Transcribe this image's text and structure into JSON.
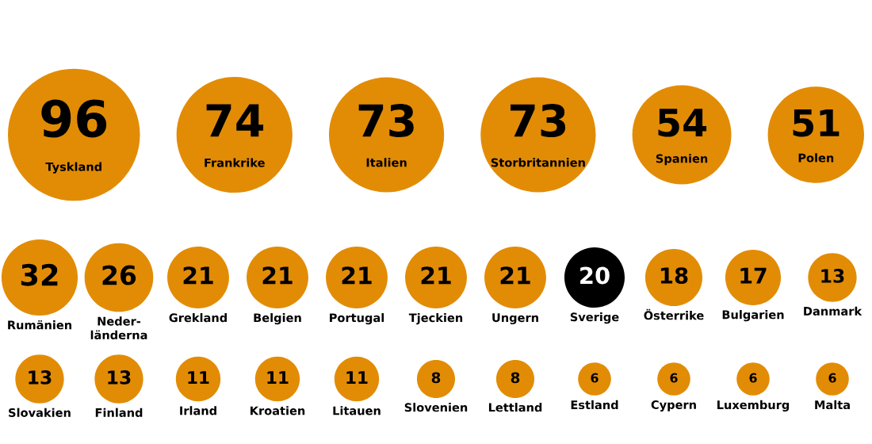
{
  "chart_data": {
    "type": "other",
    "data_labels": true,
    "categories": [
      "Tyskland",
      "Frankrike",
      "Italien",
      "Storbritannien",
      "Spanien",
      "Polen",
      "Rumänien",
      "Neder-\nländerna",
      "Grekland",
      "Belgien",
      "Portugal",
      "Tjeckien",
      "Ungern",
      "Sverige",
      "Österrike",
      "Bulgarien",
      "Danmark",
      "Slovakien",
      "Finland",
      "Irland",
      "Kroatien",
      "Litauen",
      "Slovenien",
      "Lettland",
      "Estland",
      "Cypern",
      "Luxemburg",
      "Malta"
    ],
    "values": [
      96,
      74,
      73,
      73,
      54,
      51,
      32,
      26,
      21,
      21,
      21,
      21,
      21,
      20,
      18,
      17,
      13,
      13,
      13,
      11,
      11,
      11,
      8,
      8,
      6,
      6,
      6,
      6
    ],
    "colors": [
      "#e28c05",
      "#e28c05",
      "#e28c05",
      "#e28c05",
      "#e28c05",
      "#e28c05",
      "#e28c05",
      "#e28c05",
      "#e28c05",
      "#e28c05",
      "#e28c05",
      "#e28c05",
      "#e28c05",
      "#000000",
      "#e28c05",
      "#e28c05",
      "#e28c05",
      "#e28c05",
      "#e28c05",
      "#e28c05",
      "#e28c05",
      "#e28c05",
      "#e28c05",
      "#e28c05",
      "#e28c05",
      "#e28c05",
      "#e28c05",
      "#e28c05"
    ]
  }
}
